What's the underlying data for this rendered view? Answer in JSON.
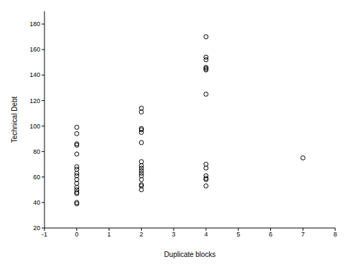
{
  "chart_data": {
    "type": "scatter",
    "x_label": "Duplicate blocks",
    "y_label": "Technical Debt",
    "x": [
      0,
      0,
      0,
      0,
      0,
      0,
      0,
      0,
      0,
      0,
      0,
      0,
      0,
      0,
      0,
      0,
      0,
      2,
      2,
      2,
      2,
      2,
      2,
      2,
      2,
      2,
      2,
      2,
      2,
      2,
      2,
      2,
      2,
      4,
      4,
      4,
      4,
      4,
      4,
      4,
      4,
      4,
      4,
      4,
      4,
      4,
      7
    ],
    "values": [
      99,
      94,
      86,
      85,
      78,
      68,
      66,
      63,
      61,
      58,
      55,
      52,
      50,
      48,
      47,
      40,
      39,
      114,
      111,
      98,
      97,
      95,
      87,
      72,
      69,
      67,
      65,
      63,
      61,
      58,
      54,
      53,
      50,
      170,
      154,
      152,
      146,
      145,
      144,
      125,
      70,
      67,
      61,
      59,
      58,
      53,
      75
    ],
    "color": "#000000",
    "marker": "circle",
    "xlim": [
      -1,
      8
    ],
    "xticks": [
      -1,
      0,
      1,
      2,
      3,
      4,
      5,
      6,
      7,
      8
    ],
    "ylim": [
      20,
      190
    ],
    "yticks": [
      20,
      40,
      60,
      80,
      100,
      120,
      140,
      160,
      180
    ],
    "grid": false
  }
}
